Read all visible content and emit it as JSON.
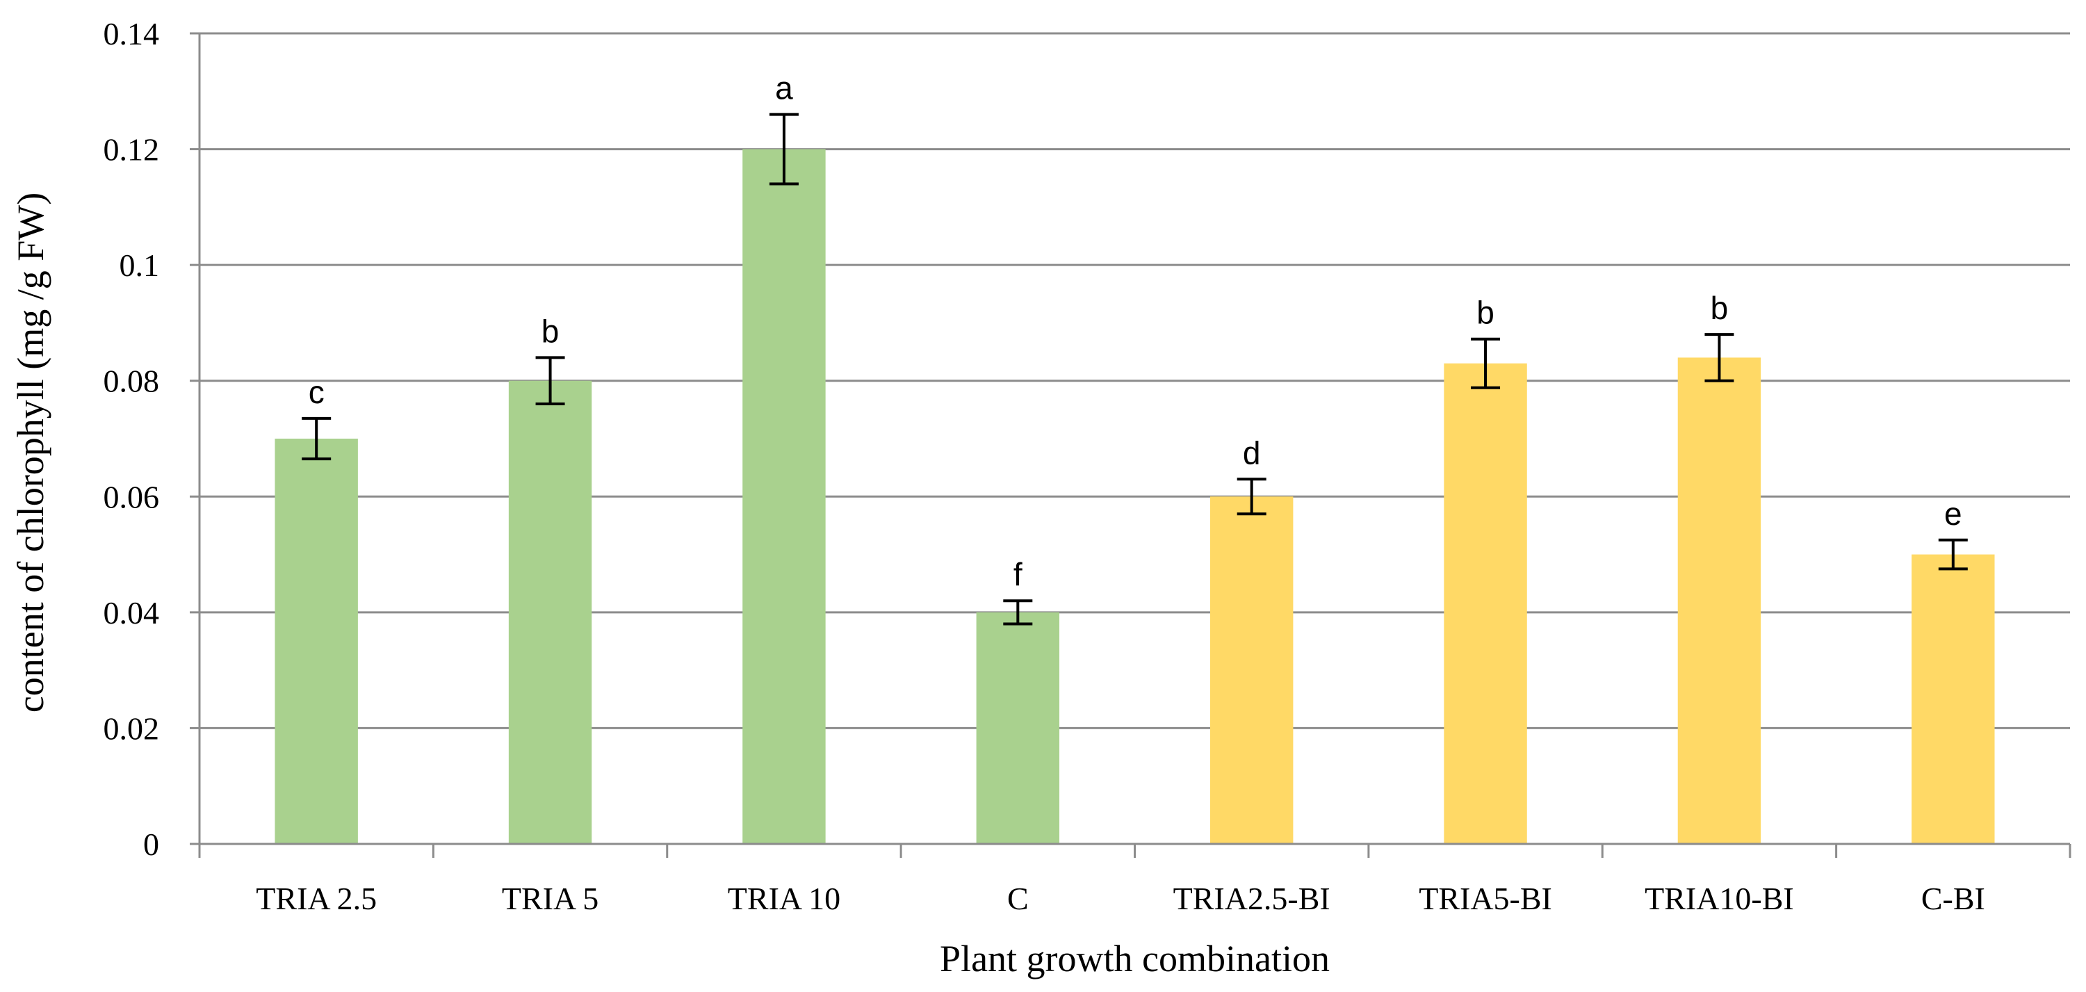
{
  "chart_data": {
    "type": "bar",
    "title": "",
    "xlabel": "Plant growth combination",
    "ylabel": "content of chlorophyll (mg /g FW)",
    "ylim": [
      0,
      0.14
    ],
    "yticks": [
      "0",
      "0.02",
      "0.04",
      "0.06",
      "0.08",
      "0.1",
      "0.12",
      "0.14"
    ],
    "ytick_values": [
      0,
      0.02,
      0.04,
      0.06,
      0.08,
      0.1,
      0.12,
      0.14
    ],
    "grid": true,
    "categories": [
      "TRIA 2.5",
      "TRIA 5",
      "TRIA 10",
      "C",
      "TRIA2.5-BI",
      "TRIA5-BI",
      "TRIA10-BI",
      "C-BI"
    ],
    "values": [
      0.07,
      0.08,
      0.12,
      0.04,
      0.06,
      0.083,
      0.084,
      0.05
    ],
    "errors": [
      0.0035,
      0.004,
      0.006,
      0.002,
      0.003,
      0.0042,
      0.004,
      0.0025
    ],
    "significance": [
      "c",
      "b",
      "a",
      "f",
      "d",
      "b",
      "b",
      "e"
    ],
    "bar_colors": [
      "#a9d18e",
      "#a9d18e",
      "#a9d18e",
      "#a9d18e",
      "#ffd966",
      "#ffd966",
      "#ffd966",
      "#ffd966"
    ]
  }
}
